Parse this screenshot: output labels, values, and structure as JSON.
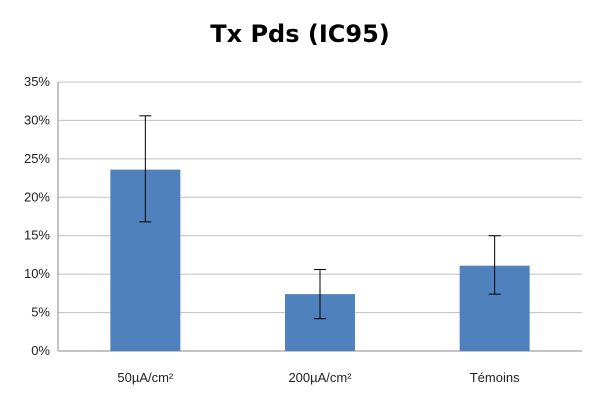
{
  "chart_data": {
    "type": "bar",
    "title": "Tx Pds (IC95)",
    "categories": [
      "50µA/cm²",
      "200µA/cm²",
      "Témoins"
    ],
    "values": [
      23.6,
      7.4,
      11.1
    ],
    "error_low": [
      16.8,
      4.2,
      7.4
    ],
    "error_high": [
      30.6,
      10.6,
      15.0
    ],
    "ylim": [
      0,
      35
    ],
    "yticks": [
      "0%",
      "5%",
      "10%",
      "15%",
      "20%",
      "25%",
      "30%",
      "35%"
    ],
    "ytick_values": [
      0,
      5,
      10,
      15,
      20,
      25,
      30,
      35
    ],
    "xlabel": "",
    "ylabel": "",
    "grid": true,
    "legend": "none",
    "bar_color": "#4f81bd",
    "grid_color": "#c0c0c0",
    "error_bar_color": "#000000"
  }
}
